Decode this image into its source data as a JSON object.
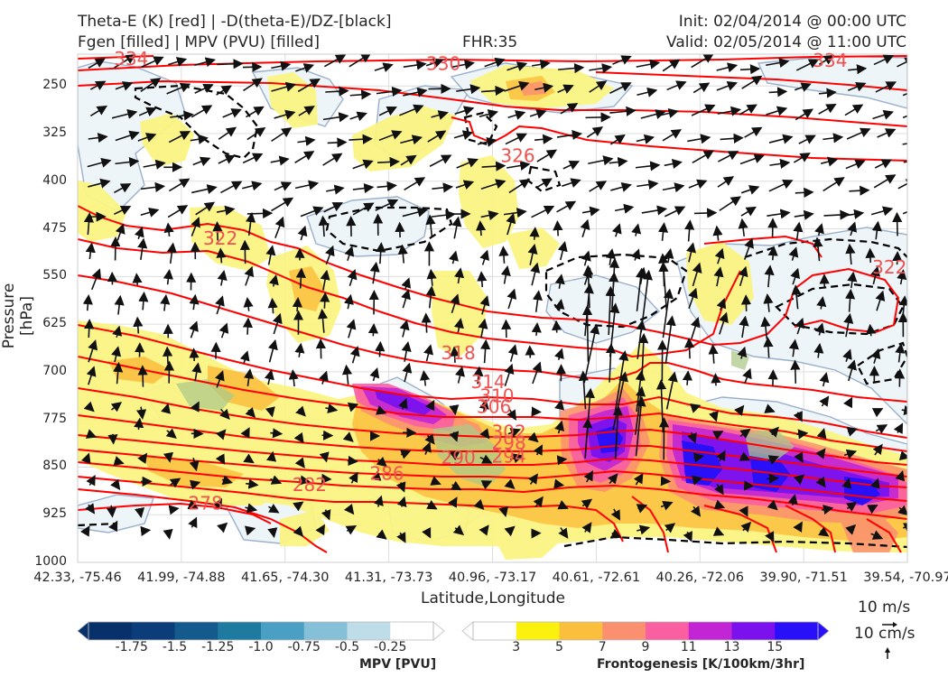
{
  "header": {
    "left_line1": "Theta-E (K) [red] | -D(theta-E)/DZ-[black]",
    "left_line2": "Fgen [filled] | MPV (PVU) [filled]",
    "center": "FHR:35",
    "right_line1": "Init: 02/04/2014 @ 00:00 UTC",
    "right_line2": "Valid: 02/05/2014 @ 11:00 UTC"
  },
  "colors": {
    "theta_e": "#ff0000",
    "theta_e_label": "#f05050",
    "dthetae_dz": "#000000",
    "mpv_outline": "#9bb0cc"
  },
  "chart_data": {
    "type": "cross-section",
    "xlabel": "Latitude,Longitude",
    "ylabel": "Pressure [hPa]",
    "ylim": [
      1000,
      200
    ],
    "yticks": [
      "250",
      "325",
      "400",
      "475",
      "550",
      "625",
      "700",
      "775",
      "850",
      "925",
      "1000"
    ],
    "ytick_values": [
      250,
      325,
      400,
      475,
      550,
      625,
      700,
      775,
      850,
      925,
      1000
    ],
    "xticks": [
      "42.33, -75.46",
      "41.99, -74.88",
      "41.65, -74.30",
      "41.31, -73.73",
      "40.96, -73.17",
      "40.61, -72.61",
      "40.26, -72.06",
      "39.90, -71.51",
      "39.54, -70.97"
    ],
    "grid": true,
    "theta_e_contour_labels": [
      {
        "text": "330",
        "lat": 41.1,
        "p": 215
      },
      {
        "text": "334",
        "lat": 39.8,
        "p": 210
      },
      {
        "text": "334",
        "lat": 42.15,
        "p": 207
      },
      {
        "text": "326",
        "lat": 40.85,
        "p": 360
      },
      {
        "text": "322",
        "lat": 41.85,
        "p": 490
      },
      {
        "text": "322",
        "lat": 39.6,
        "p": 535
      },
      {
        "text": "318",
        "lat": 41.05,
        "p": 670
      },
      {
        "text": "314",
        "lat": 40.95,
        "p": 716
      },
      {
        "text": "310",
        "lat": 40.92,
        "p": 738
      },
      {
        "text": "306",
        "lat": 40.93,
        "p": 755
      },
      {
        "text": "302",
        "lat": 40.88,
        "p": 795
      },
      {
        "text": "298",
        "lat": 40.88,
        "p": 812
      },
      {
        "text": "294",
        "lat": 40.88,
        "p": 833
      },
      {
        "text": "290",
        "lat": 41.05,
        "p": 835
      },
      {
        "text": "286",
        "lat": 41.29,
        "p": 860
      },
      {
        "text": "282",
        "lat": 41.55,
        "p": 878
      },
      {
        "text": "278",
        "lat": 41.9,
        "p": 907
      }
    ],
    "wind_scale": {
      "horizontal": "10 m/s",
      "vertical": "10 cm/s"
    },
    "colorbars": [
      {
        "name": "MPV [PVU]",
        "ticks": [
          "-1.75",
          "-1.5",
          "-1.25",
          "-1.0",
          "-0.75",
          "-0.5",
          "-0.25"
        ],
        "levels": [
          -2.0,
          -1.75,
          -1.5,
          -1.25,
          -1.0,
          -0.75,
          -0.5,
          -0.25,
          0.0
        ],
        "colors": [
          "#08306b",
          "#0b3d7a",
          "#145a8c",
          "#1f7aa0",
          "#4aa0c4",
          "#86c0d8",
          "#bfdde8",
          "#ffffff"
        ]
      },
      {
        "name": "Frontogenesis [K/100km/3hr]",
        "ticks": [
          "3",
          "5",
          "7",
          "9",
          "11",
          "13",
          "15"
        ],
        "levels": [
          1,
          3,
          5,
          7,
          9,
          11,
          13,
          15,
          17
        ],
        "colors": [
          "#ffffff",
          "#fbf10f",
          "#fbbf3e",
          "#fb9070",
          "#fa5fa2",
          "#c225d4",
          "#7b12ee",
          "#2a10f8"
        ]
      }
    ]
  }
}
